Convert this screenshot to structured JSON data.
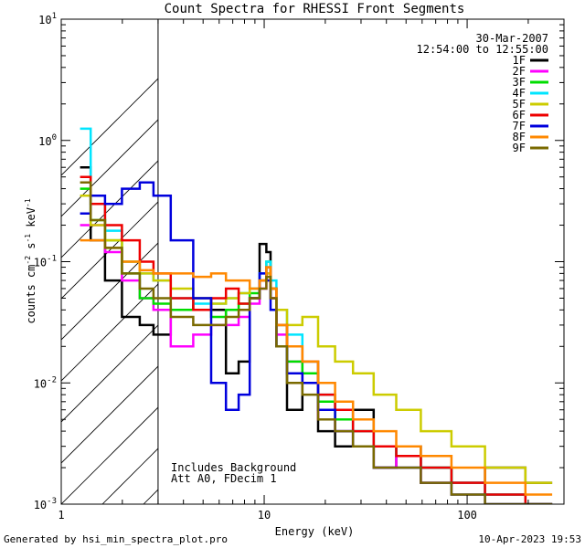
{
  "chart_data": {
    "type": "line",
    "title": "Count Spectra for RHESSI Front Segments",
    "date": "30-Mar-2007",
    "time_range": "12:54:00 to 12:55:00",
    "xlabel": "Energy (keV)",
    "ylabel_base": "counts cm",
    "ylabel_exp1": "-2",
    "ylabel_mid": " s",
    "ylabel_exp2": "-1",
    "ylabel_end": " keV",
    "ylabel_exp3": "-1",
    "x_scale": "log",
    "y_scale": "log",
    "xlim": [
      1,
      300
    ],
    "ylim": [
      0.001,
      10
    ],
    "x_ticks": [
      {
        "value": 1,
        "label": "1"
      },
      {
        "value": 10,
        "label": "10"
      },
      {
        "value": 100,
        "label": "100"
      }
    ],
    "y_ticks": [
      {
        "value": 10,
        "base": "10",
        "exp": "1"
      },
      {
        "value": 1,
        "base": "10",
        "exp": "0"
      },
      {
        "value": 0.1,
        "base": "10",
        "exp": "-1"
      },
      {
        "value": 0.01,
        "base": "10",
        "exp": "-2"
      },
      {
        "value": 0.001,
        "base": "10",
        "exp": "-3"
      }
    ],
    "hatch_below_keV": 3,
    "annotations": [
      "Includes Background",
      "Att A0, FDecim 1"
    ],
    "series": [
      {
        "name": "1F",
        "color": "#000000",
        "energy": [
          1.3,
          1.5,
          1.8,
          2.2,
          2.7,
          3,
          4,
          5,
          6,
          7,
          8,
          9,
          10,
          10.5,
          11,
          12,
          14,
          17,
          20,
          25,
          30,
          40,
          50,
          70,
          100,
          150,
          250
        ],
        "values": [
          0.6,
          0.15,
          0.07,
          0.035,
          0.03,
          0.025,
          0.04,
          0.05,
          0.04,
          0.012,
          0.015,
          0.05,
          0.14,
          0.12,
          0.05,
          0.02,
          0.006,
          0.012,
          0.004,
          0.003,
          0.006,
          0.002,
          0.003,
          0.002,
          0.0015,
          0.002,
          0.0015
        ]
      },
      {
        "name": "2F",
        "color": "#ff00ff",
        "energy": [
          1.3,
          1.5,
          1.8,
          2.2,
          2.7,
          3,
          4,
          5,
          6,
          7,
          8,
          9,
          10,
          10.5,
          11,
          12,
          14,
          17,
          20,
          25,
          30,
          40,
          50,
          70,
          100,
          150,
          250
        ],
        "values": [
          0.2,
          0.2,
          0.12,
          0.07,
          0.05,
          0.04,
          0.02,
          0.025,
          0.03,
          0.03,
          0.035,
          0.045,
          0.06,
          0.08,
          0.05,
          0.025,
          0.015,
          0.01,
          0.005,
          0.004,
          0.003,
          0.002,
          0.0025,
          0.0015,
          0.0015,
          0.0012,
          0.001
        ]
      },
      {
        "name": "3F",
        "color": "#00dd00",
        "energy": [
          1.3,
          1.5,
          1.8,
          2.2,
          2.7,
          3,
          4,
          5,
          6,
          7,
          8,
          9,
          10,
          10.5,
          11,
          12,
          14,
          17,
          20,
          25,
          30,
          40,
          50,
          70,
          100,
          150,
          250
        ],
        "values": [
          0.4,
          0.22,
          0.15,
          0.08,
          0.05,
          0.045,
          0.04,
          0.04,
          0.035,
          0.04,
          0.045,
          0.055,
          0.07,
          0.1,
          0.06,
          0.03,
          0.015,
          0.012,
          0.007,
          0.005,
          0.004,
          0.003,
          0.0025,
          0.002,
          0.0015,
          0.0012,
          0.001
        ]
      },
      {
        "name": "4F",
        "color": "#00e5ff",
        "energy": [
          1.3,
          1.5,
          1.8,
          2.2,
          2.7,
          3,
          4,
          5,
          6,
          7,
          8,
          9,
          10,
          10.5,
          11,
          12,
          14,
          17,
          20,
          25,
          30,
          40,
          50,
          70,
          100,
          150,
          250
        ],
        "values": [
          1.25,
          0.3,
          0.18,
          0.1,
          0.08,
          0.07,
          0.05,
          0.045,
          0.045,
          0.05,
          0.055,
          0.06,
          0.08,
          0.1,
          0.07,
          0.04,
          0.025,
          0.015,
          0.008,
          0.006,
          0.004,
          0.003,
          0.0025,
          0.002,
          0.0015,
          0.0012,
          0.001
        ]
      },
      {
        "name": "5F",
        "color": "#cccc00",
        "energy": [
          1.3,
          1.5,
          1.8,
          2.2,
          2.7,
          3,
          4,
          5,
          6,
          7,
          8,
          9,
          10,
          10.5,
          11,
          12,
          14,
          17,
          20,
          25,
          30,
          40,
          50,
          70,
          100,
          150,
          250
        ],
        "values": [
          0.35,
          0.2,
          0.15,
          0.1,
          0.08,
          0.07,
          0.06,
          0.05,
          0.045,
          0.05,
          0.055,
          0.06,
          0.07,
          0.08,
          0.06,
          0.04,
          0.03,
          0.035,
          0.02,
          0.015,
          0.012,
          0.008,
          0.006,
          0.004,
          0.003,
          0.002,
          0.0015
        ]
      },
      {
        "name": "6F",
        "color": "#ee0000",
        "energy": [
          1.3,
          1.5,
          1.8,
          2.2,
          2.7,
          3,
          4,
          5,
          6,
          7,
          8,
          9,
          10,
          10.5,
          11,
          12,
          14,
          17,
          20,
          25,
          30,
          40,
          50,
          70,
          100,
          150,
          250
        ],
        "values": [
          0.5,
          0.3,
          0.2,
          0.15,
          0.1,
          0.08,
          0.05,
          0.04,
          0.05,
          0.06,
          0.045,
          0.05,
          0.07,
          0.09,
          0.06,
          0.03,
          0.02,
          0.015,
          0.008,
          0.006,
          0.004,
          0.003,
          0.0025,
          0.002,
          0.0015,
          0.0012,
          0.001
        ]
      },
      {
        "name": "7F",
        "color": "#0000dd",
        "energy": [
          1.3,
          1.5,
          1.8,
          2.2,
          2.7,
          3,
          4,
          5,
          6,
          7,
          8,
          9,
          10,
          10.5,
          11,
          12,
          14,
          17,
          20,
          25,
          30,
          40,
          50,
          70,
          100,
          150,
          250
        ],
        "values": [
          0.25,
          0.35,
          0.3,
          0.4,
          0.45,
          0.35,
          0.15,
          0.05,
          0.01,
          0.006,
          0.008,
          0.05,
          0.08,
          0.07,
          0.04,
          0.02,
          0.012,
          0.01,
          0.006,
          0.004,
          0.003,
          0.002,
          0.002,
          0.0015,
          0.0012,
          0.001,
          0.001
        ]
      },
      {
        "name": "8F",
        "color": "#ff8800",
        "energy": [
          1.3,
          1.5,
          1.8,
          2.2,
          2.7,
          3,
          4,
          5,
          6,
          7,
          8,
          9,
          10,
          10.5,
          11,
          12,
          14,
          17,
          20,
          25,
          30,
          40,
          50,
          70,
          100,
          150,
          250
        ],
        "values": [
          0.15,
          0.15,
          0.13,
          0.1,
          0.085,
          0.08,
          0.08,
          0.075,
          0.08,
          0.07,
          0.07,
          0.06,
          0.07,
          0.09,
          0.06,
          0.03,
          0.02,
          0.015,
          0.01,
          0.007,
          0.005,
          0.004,
          0.003,
          0.0025,
          0.002,
          0.0015,
          0.0012
        ]
      },
      {
        "name": "9F",
        "color": "#7a6a00",
        "energy": [
          1.3,
          1.5,
          1.8,
          2.2,
          2.7,
          3,
          4,
          5,
          6,
          7,
          8,
          9,
          10,
          10.5,
          11,
          12,
          14,
          17,
          20,
          25,
          30,
          40,
          50,
          70,
          100,
          150,
          250
        ],
        "values": [
          0.45,
          0.22,
          0.13,
          0.08,
          0.06,
          0.05,
          0.035,
          0.03,
          0.03,
          0.035,
          0.04,
          0.05,
          0.06,
          0.075,
          0.05,
          0.02,
          0.01,
          0.008,
          0.005,
          0.004,
          0.003,
          0.002,
          0.002,
          0.0015,
          0.0012,
          0.001,
          0.001
        ]
      }
    ]
  },
  "footer": {
    "generated_by": "Generated by hsi_min_spectra_plot.pro",
    "timestamp": "10-Apr-2023 19:53"
  }
}
